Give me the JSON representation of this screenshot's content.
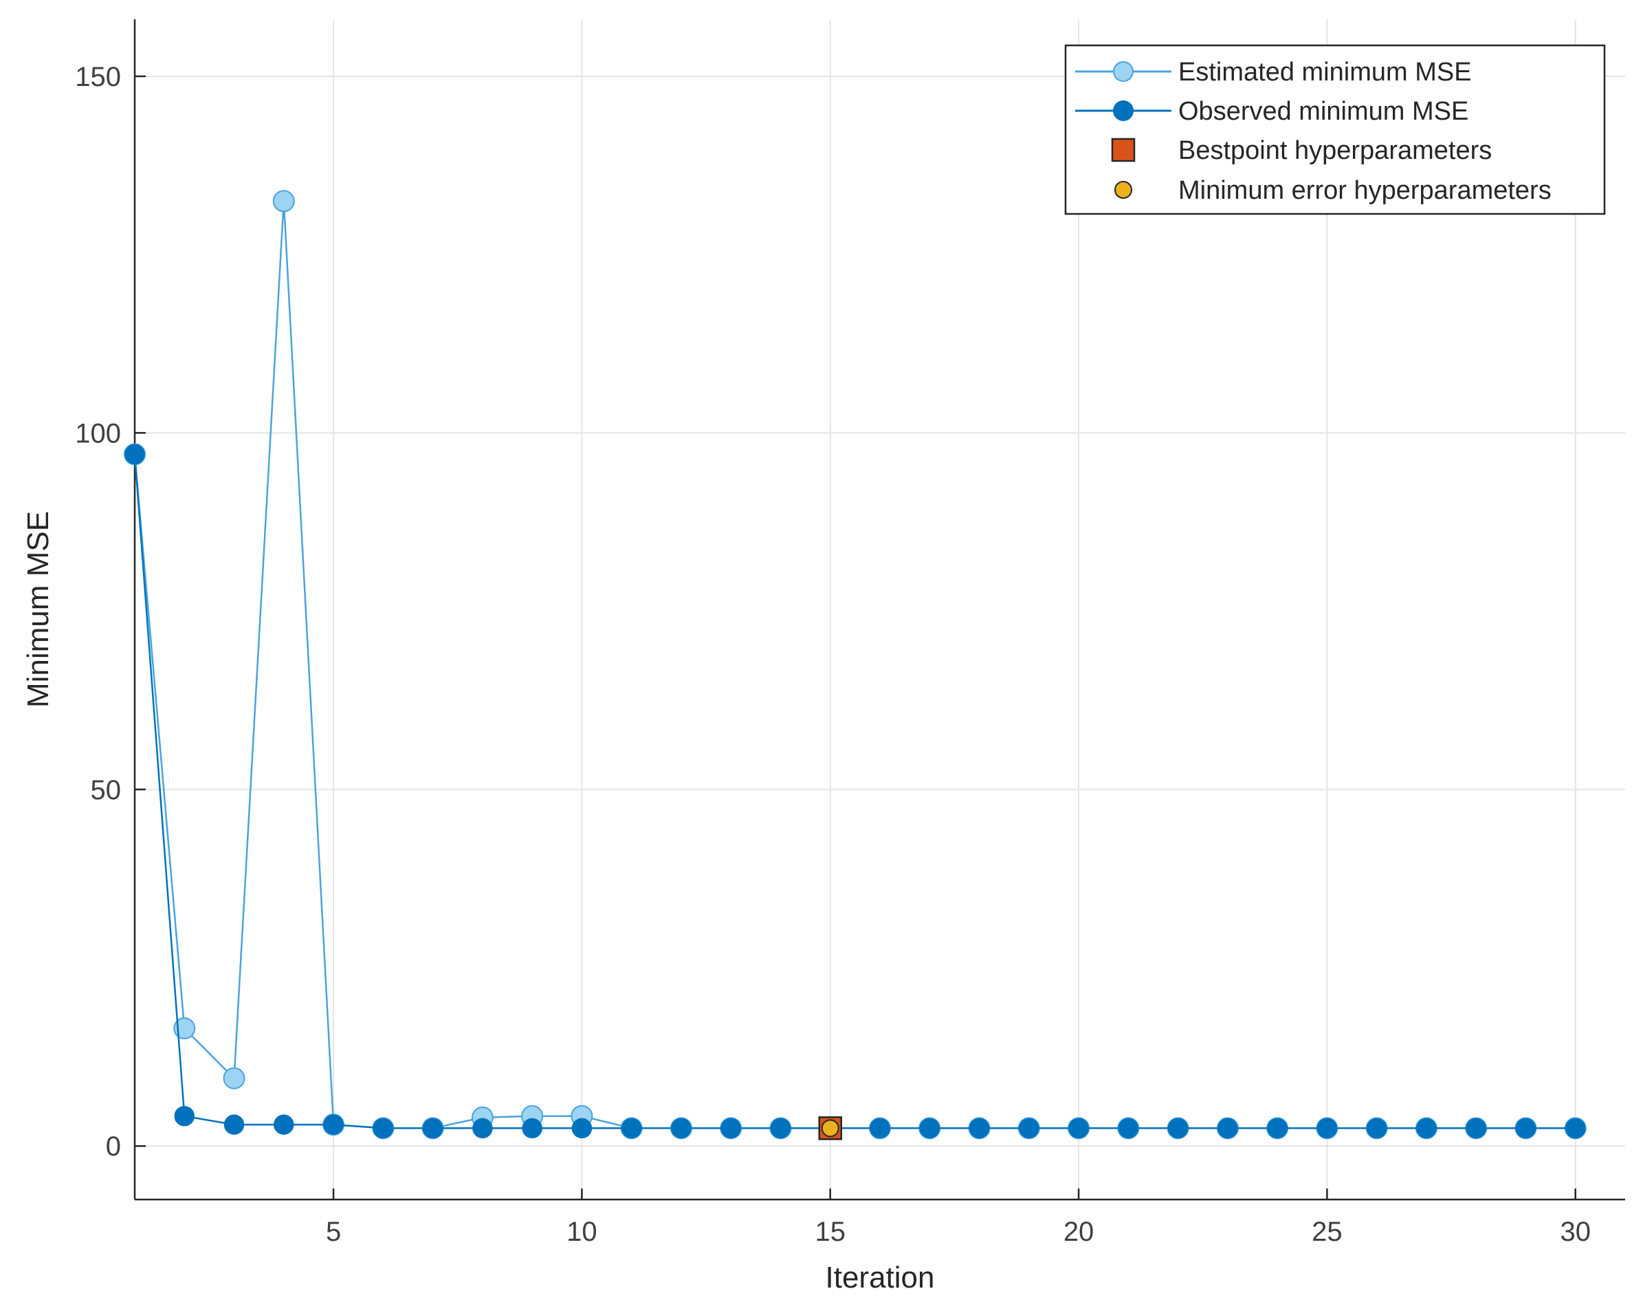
{
  "chart_data": {
    "type": "line",
    "title": "",
    "xlabel": "Iteration",
    "ylabel": "Minimum MSE",
    "xlim": [
      1,
      31
    ],
    "ylim": [
      -7.5,
      158
    ],
    "xticks": [
      5,
      10,
      15,
      20,
      25,
      30
    ],
    "yticks": [
      0,
      50,
      100,
      150
    ],
    "grid": true,
    "legend_position": "top-right",
    "x": [
      1,
      2,
      3,
      4,
      5,
      6,
      7,
      8,
      9,
      10,
      11,
      12,
      13,
      14,
      15,
      16,
      17,
      18,
      19,
      20,
      21,
      22,
      23,
      24,
      25,
      26,
      27,
      28,
      29,
      30
    ],
    "series": [
      {
        "name": "Estimated minimum MSE",
        "color": "#9dd3f3",
        "line_color": "#4aa3dc",
        "values": [
          97,
          16.5,
          9.5,
          132.5,
          3,
          2.5,
          2.5,
          4,
          4.2,
          4.2,
          2.5,
          2.5,
          2.5,
          2.5,
          2.5,
          2.5,
          2.5,
          2.5,
          2.5,
          2.5,
          2.5,
          2.5,
          2.5,
          2.5,
          2.5,
          2.5,
          2.5,
          2.5,
          2.5,
          2.5
        ]
      },
      {
        "name": "Observed minimum MSE",
        "color": "#0072bd",
        "line_color": "#0072bd",
        "values": [
          97,
          4.2,
          3,
          3,
          3,
          2.5,
          2.5,
          2.5,
          2.5,
          2.5,
          2.5,
          2.5,
          2.5,
          2.5,
          2.5,
          2.5,
          2.5,
          2.5,
          2.5,
          2.5,
          2.5,
          2.5,
          2.5,
          2.5,
          2.5,
          2.5,
          2.5,
          2.5,
          2.5,
          2.5
        ]
      }
    ],
    "markers": [
      {
        "name": "Bestpoint hyperparameters",
        "shape": "square",
        "color": "#d95319",
        "x": 15,
        "y": 2.5
      },
      {
        "name": "Minimum error hyperparameters",
        "shape": "circle",
        "color": "#edb120",
        "x": 15,
        "y": 2.5
      }
    ]
  }
}
